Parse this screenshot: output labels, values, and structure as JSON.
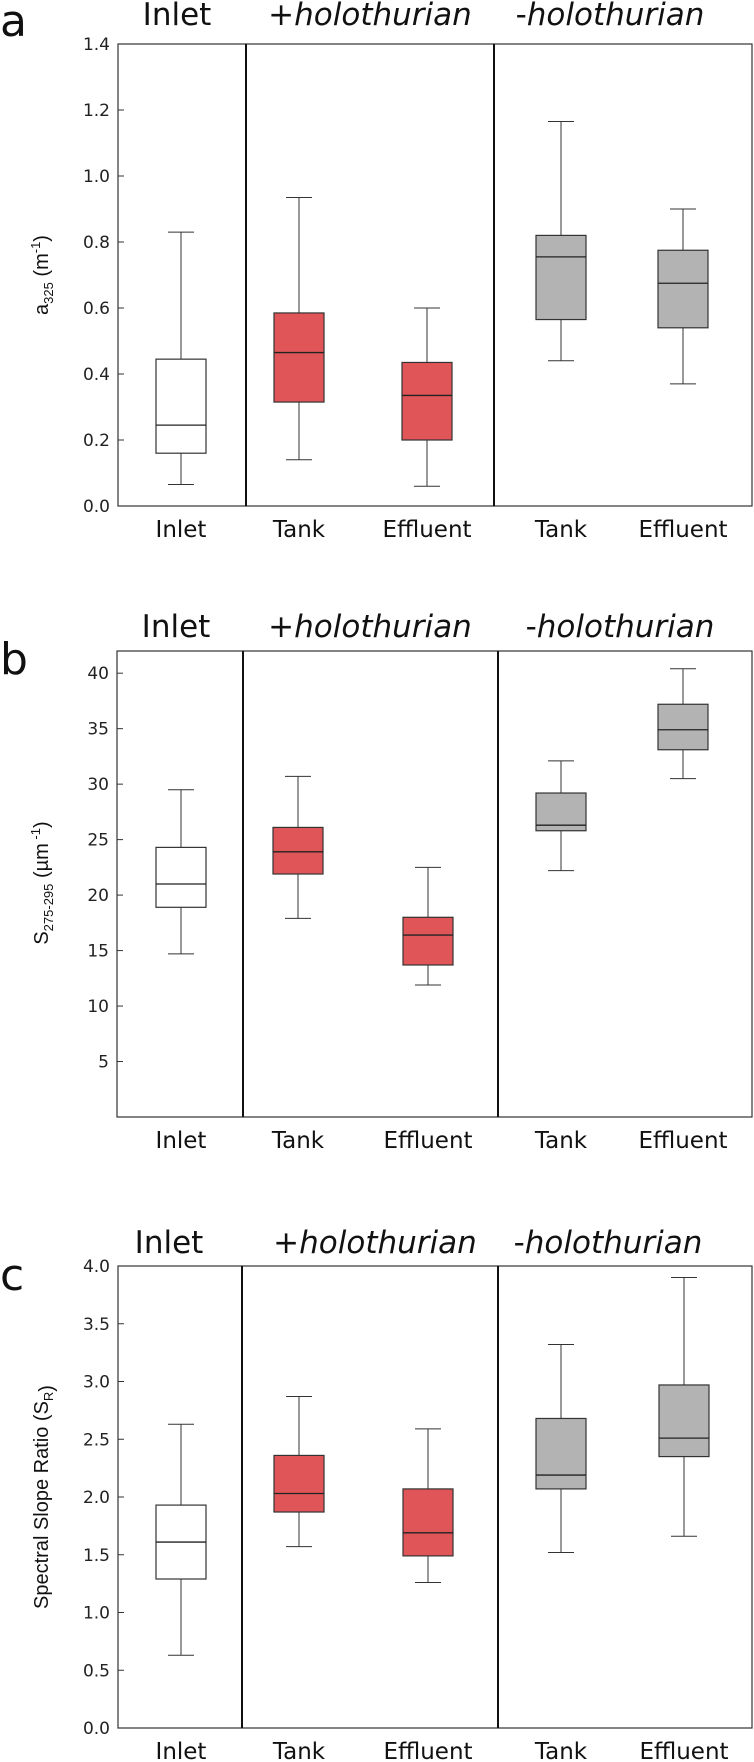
{
  "colors": {
    "inlet": "#ffffff",
    "with_holothurian": "#e05658",
    "without_holothurian": "#b3b3b3",
    "stroke": "#333333"
  },
  "chart_data": [
    {
      "type": "box",
      "panel_label": "a",
      "ylabel": {
        "main": "a",
        "sub": "325",
        "unit_pre": " (m",
        "unit_sup": "-1",
        "unit_post": ")"
      },
      "ylim": [
        0,
        1.4
      ],
      "yticks": [
        "0.0",
        "0.2",
        "0.4",
        "0.6",
        "0.8",
        "1.0",
        "1.2",
        "1.4"
      ],
      "yticks_values": [
        0,
        0.2,
        0.4,
        0.6,
        0.8,
        1.0,
        1.2,
        1.4
      ],
      "groups": [
        {
          "prefix": "",
          "label": "Inlet"
        },
        {
          "prefix": "+",
          "label": "holothurian"
        },
        {
          "prefix": "-",
          "label": "holothurian"
        }
      ],
      "boxes": [
        {
          "category": "Inlet",
          "group": 0,
          "min": 0.065,
          "q1": 0.16,
          "median": 0.245,
          "q3": 0.445,
          "max": 0.83
        },
        {
          "category": "Tank",
          "group": 1,
          "min": 0.14,
          "q1": 0.315,
          "median": 0.465,
          "q3": 0.585,
          "max": 0.935
        },
        {
          "category": "Effluent",
          "group": 1,
          "min": 0.06,
          "q1": 0.2,
          "median": 0.335,
          "q3": 0.435,
          "max": 0.6
        },
        {
          "category": "Tank",
          "group": 2,
          "min": 0.44,
          "q1": 0.565,
          "median": 0.755,
          "q3": 0.82,
          "max": 1.165
        },
        {
          "category": "Effluent",
          "group": 2,
          "min": 0.37,
          "q1": 0.54,
          "median": 0.675,
          "q3": 0.775,
          "max": 0.9
        }
      ]
    },
    {
      "type": "box",
      "panel_label": "b",
      "ylabel": {
        "main": "S",
        "sub": "275-295",
        "unit_pre": " (µm",
        "unit_sup": " -1",
        "unit_post": ")"
      },
      "ylim": [
        0,
        42
      ],
      "yticks": [
        "5",
        "10",
        "15",
        "20",
        "25",
        "30",
        "35",
        "40"
      ],
      "yticks_values": [
        5,
        10,
        15,
        20,
        25,
        30,
        35,
        40
      ],
      "groups": [
        {
          "prefix": "",
          "label": "Inlet"
        },
        {
          "prefix": "+",
          "label": "holothurian"
        },
        {
          "prefix": "-",
          "label": "holothurian"
        }
      ],
      "boxes": [
        {
          "category": "Inlet",
          "group": 0,
          "min": 14.7,
          "q1": 18.9,
          "median": 21.0,
          "q3": 24.3,
          "max": 29.5
        },
        {
          "category": "Tank",
          "group": 1,
          "min": 17.9,
          "q1": 21.9,
          "median": 23.9,
          "q3": 26.1,
          "max": 30.7
        },
        {
          "category": "Effluent",
          "group": 1,
          "min": 11.9,
          "q1": 13.7,
          "median": 16.4,
          "q3": 18.0,
          "max": 22.5
        },
        {
          "category": "Tank",
          "group": 2,
          "min": 22.2,
          "q1": 25.8,
          "median": 26.3,
          "q3": 29.2,
          "max": 32.1
        },
        {
          "category": "Effluent",
          "group": 2,
          "min": 30.5,
          "q1": 33.1,
          "median": 34.9,
          "q3": 37.2,
          "max": 40.4
        }
      ]
    },
    {
      "type": "box",
      "panel_label": "c",
      "ylabel": {
        "main": "Spectral Slope Ratio (S",
        "sub": "R",
        "unit_pre": "",
        "unit_sup": "",
        "unit_post": ")"
      },
      "ylim": [
        0,
        4.0
      ],
      "yticks": [
        "0.0",
        "0.5",
        "1.0",
        "1.5",
        "2.0",
        "2.5",
        "3.0",
        "3.5",
        "4.0"
      ],
      "yticks_values": [
        0,
        0.5,
        1.0,
        1.5,
        2.0,
        2.5,
        3.0,
        3.5,
        4.0
      ],
      "groups": [
        {
          "prefix": "",
          "label": "Inlet"
        },
        {
          "prefix": "+",
          "label": "holothurian"
        },
        {
          "prefix": "-",
          "label": "holothurian"
        }
      ],
      "boxes": [
        {
          "category": "Inlet",
          "group": 0,
          "min": 0.63,
          "q1": 1.29,
          "median": 1.61,
          "q3": 1.93,
          "max": 2.63
        },
        {
          "category": "Tank",
          "group": 1,
          "min": 1.57,
          "q1": 1.87,
          "median": 2.03,
          "q3": 2.36,
          "max": 2.87
        },
        {
          "category": "Effluent",
          "group": 1,
          "min": 1.26,
          "q1": 1.49,
          "median": 1.69,
          "q3": 2.07,
          "max": 2.59
        },
        {
          "category": "Tank",
          "group": 2,
          "min": 1.52,
          "q1": 2.07,
          "median": 2.19,
          "q3": 2.68,
          "max": 3.32
        },
        {
          "category": "Effluent",
          "group": 2,
          "min": 1.66,
          "q1": 2.35,
          "median": 2.51,
          "q3": 2.97,
          "max": 3.9
        }
      ]
    }
  ]
}
